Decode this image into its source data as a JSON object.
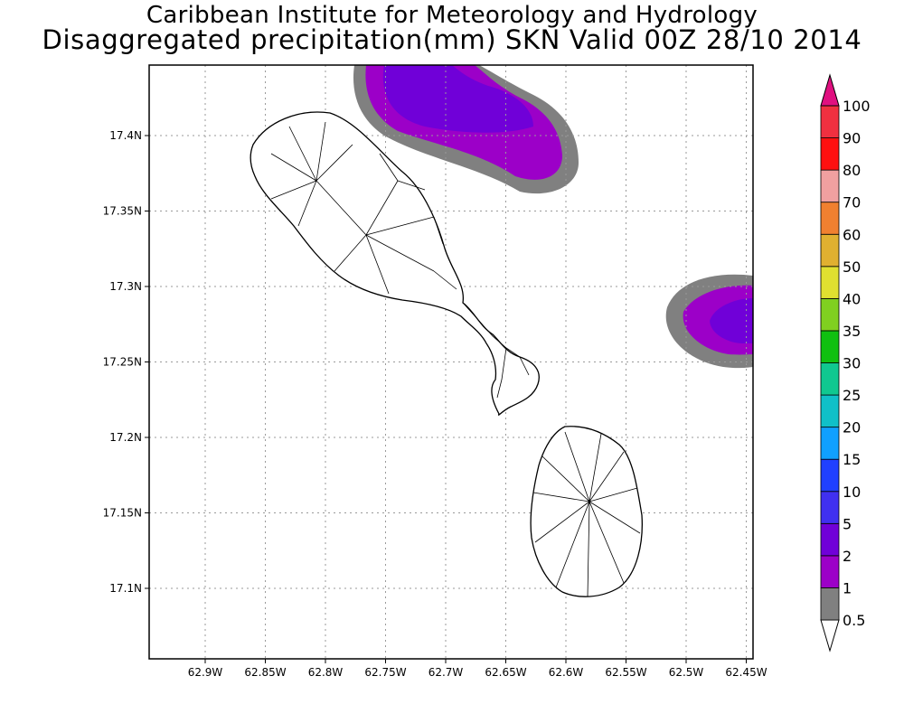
{
  "title": "Caribbean Institute for Meteorology and Hydrology",
  "subtitle": "Disaggregated precipitation(mm) SKN Valid 00Z 28/10 2014",
  "map": {
    "region": "St Kitts and Nevis",
    "lon_ticks": [
      "62.9W",
      "62.85W",
      "62.8W",
      "62.75W",
      "62.7W",
      "62.65W",
      "62.6W",
      "62.55W",
      "62.5W",
      "62.45W"
    ],
    "lat_ticks": [
      "17.4N",
      "17.35N",
      "17.3N",
      "17.25N",
      "17.2N",
      "17.15N",
      "17.1N"
    ],
    "grid": true,
    "grid_style": "dotted"
  },
  "colorbar": {
    "unit": "mm",
    "labels": [
      "0.5",
      "1",
      "2",
      "5",
      "10",
      "15",
      "20",
      "25",
      "30",
      "35",
      "40",
      "50",
      "60",
      "70",
      "80",
      "90",
      "100"
    ],
    "colors": [
      "#808080",
      "#9c00c8",
      "#7000d8",
      "#4030f0",
      "#2040ff",
      "#10a0ff",
      "#10c0c8",
      "#10c890",
      "#10c010",
      "#80d020",
      "#e0e030",
      "#e0b030",
      "#f08030",
      "#f0a0a0",
      "#ff1010",
      "#f03040",
      "#e01080"
    ]
  },
  "precip_areas": [
    {
      "name": "north-cell",
      "category": "0.5-5 mm"
    },
    {
      "name": "east-cell",
      "category": "0.5-5 mm"
    }
  ]
}
